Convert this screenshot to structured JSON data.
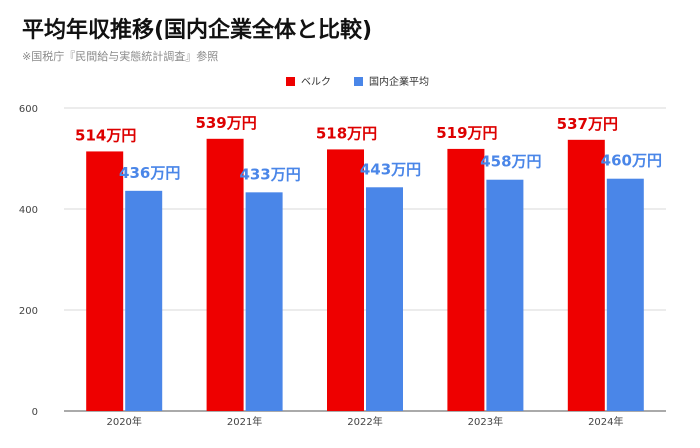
{
  "title": "平均年収推移(国内企業全体と比較)",
  "subtitle": "※国税庁『民間給与実態統計調査』参照",
  "chart_data": {
    "type": "bar",
    "categories": [
      "2020年",
      "2021年",
      "2022年",
      "2023年",
      "2024年"
    ],
    "series": [
      {
        "name": "ベルク",
        "values": [
          514,
          539,
          518,
          519,
          537
        ],
        "labels": [
          "514万円",
          "539万円",
          "518万円",
          "519万円",
          "537万円"
        ],
        "color": "#ee0000",
        "label_color": "#dd0000"
      },
      {
        "name": "国内企業平均",
        "values": [
          436,
          433,
          443,
          458,
          460
        ],
        "labels": [
          "436万円",
          "433万円",
          "443万円",
          "458万円",
          "460万円"
        ],
        "color": "#4a86e8",
        "label_color": "#4a86e8"
      }
    ],
    "yticks": [
      "0",
      "200",
      "400",
      "600"
    ],
    "ylim": [
      0,
      600
    ],
    "grid": true,
    "legend": "top-center"
  }
}
